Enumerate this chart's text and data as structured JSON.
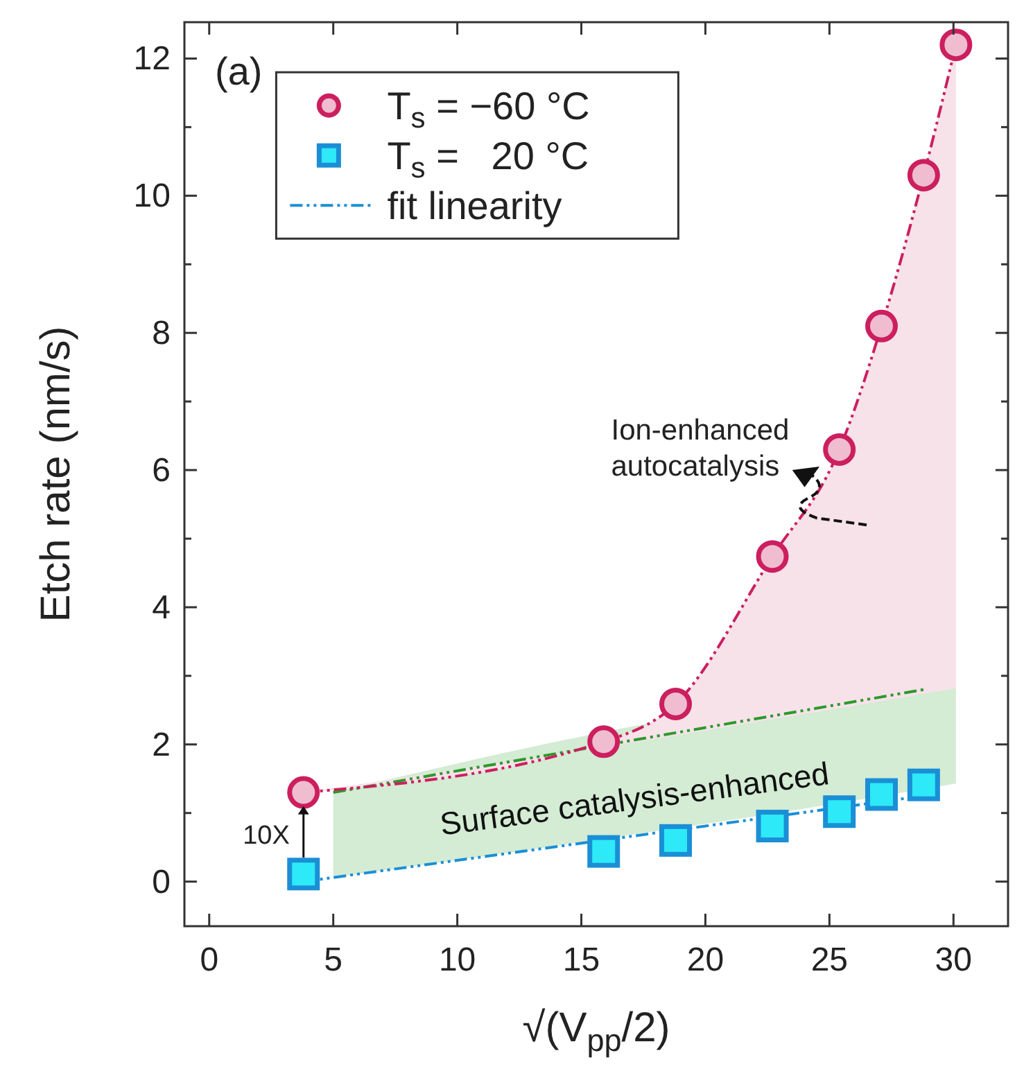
{
  "chart_data": {
    "type": "scatter",
    "xlabel": "√(V$_{pp}$/2)",
    "ylabel": "Etch rate (nm/s)",
    "xlim": [
      -1,
      32.2
    ],
    "ylim": [
      -0.65,
      12.53
    ],
    "xticks": [
      0,
      5,
      10,
      15,
      20,
      25,
      30
    ],
    "yticks": [
      0,
      {
        "value": 1,
        "label": null
      },
      2,
      {
        "value": 3,
        "label": null
      },
      4,
      {
        "value": 5,
        "label": null
      },
      6,
      {
        "value": 7,
        "label": null
      },
      8,
      {
        "value": 9,
        "label": null
      },
      10,
      {
        "value": 11,
        "label": null
      },
      12
    ],
    "legend": "top left",
    "grid": false,
    "annotations": [
      "(a)",
      "Ion-enhanced autocatalysis",
      "Surface catalysis-enhanced",
      "10X"
    ],
    "series": [
      {
        "type": "line",
        "color": "#2a9a2a",
        "line_style": "dashed",
        "x": [
          5,
          28.8,
          30.1
        ],
        "values": [
          1.3,
          2.8,
          null
        ],
        "lower": [
          0.06,
          1.35,
          1.43
        ],
        "upper": [
          1.3,
          2.8,
          2.82
        ]
      },
      {
        "type": "line",
        "color": "#1a8fd6",
        "line_style": "dashed",
        "name": "fit linearity",
        "x": [
          3.8,
          28.8
        ],
        "values": [
          0,
          1.25
        ]
      },
      {
        "type": "line",
        "color": "#cc1f5f",
        "line_style": "dashed",
        "x": [
          3.8,
          15.9,
          18.8,
          22.7,
          25.4,
          27.1,
          28.8,
          30.1
        ],
        "values": [
          1.3,
          2.04,
          2.59,
          4.74,
          6.3,
          8.1,
          10.3,
          12.2
        ],
        "lower": [
          1.3,
          1.96,
          2.13,
          2.37,
          2.53,
          2.63,
          2.74,
          2.82
        ],
        "upper": [
          1.3,
          2.04,
          2.59,
          4.74,
          6.3,
          8.1,
          10.3,
          12.2
        ]
      },
      {
        "marker": "circle",
        "color": "#cc1f5f",
        "name": "T$_{s}$ = −60 °C",
        "x": [
          3.8,
          15.9,
          18.8,
          22.7,
          25.4,
          27.1,
          28.8,
          30.1
        ],
        "values": [
          1.3,
          2.04,
          2.59,
          4.74,
          6.3,
          8.1,
          10.3,
          12.2
        ]
      },
      {
        "marker": "square",
        "color": "#1a8fd6",
        "name": "T$_{s}$ =   20 °C",
        "x": [
          3.8,
          15.9,
          18.8,
          22.7,
          25.4,
          27.1,
          28.8
        ],
        "values": [
          0.11,
          0.44,
          0.6,
          0.81,
          1.02,
          1.27,
          1.41
        ]
      }
    ]
  }
}
